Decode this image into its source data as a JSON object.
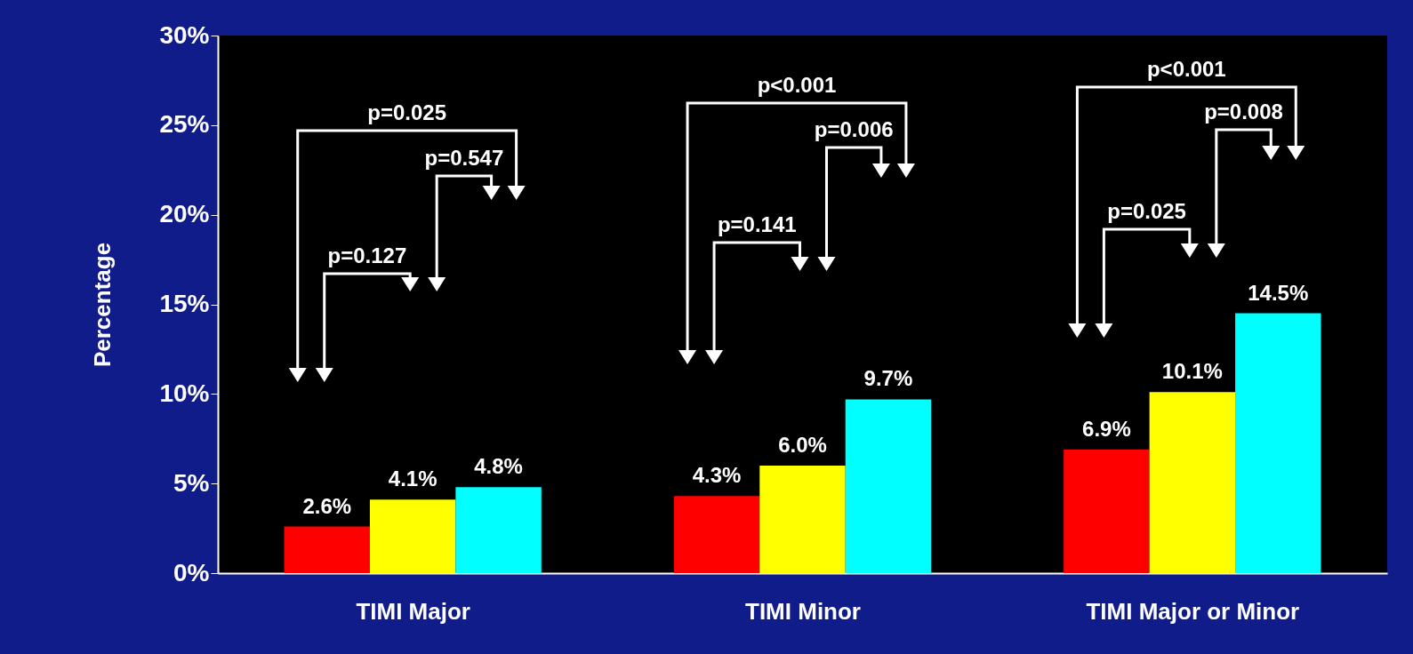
{
  "chart_data": {
    "type": "bar",
    "ylabel": "Percentage",
    "categories": [
      "TIMI Major",
      "TIMI Minor",
      "TIMI Major or Minor"
    ],
    "series": [
      {
        "color": "#ff0000",
        "values": [
          2.6,
          4.3,
          6.9
        ],
        "value_labels": [
          "2.6%",
          "4.3%",
          "6.9%"
        ]
      },
      {
        "color": "#ffff00",
        "values": [
          4.1,
          6.0,
          10.1
        ],
        "value_labels": [
          "4.1%",
          "6.0%",
          "10.1%"
        ]
      },
      {
        "color": "#00ffff",
        "values": [
          4.8,
          9.7,
          14.5
        ],
        "value_labels": [
          "4.8%",
          "9.7%",
          "14.5%"
        ]
      }
    ],
    "ylim": [
      0,
      30
    ],
    "yticks": [
      {
        "value": 0,
        "label": "0%"
      },
      {
        "value": 5,
        "label": "5%"
      },
      {
        "value": 10,
        "label": "10%"
      },
      {
        "value": 15,
        "label": "15%"
      },
      {
        "value": 20,
        "label": "20%"
      },
      {
        "value": 25,
        "label": "25%"
      },
      {
        "value": 30,
        "label": "30%"
      }
    ],
    "grid": false,
    "annotations": [
      "p=0.025",
      "p=0.547",
      "p=0.127",
      "p<0.001",
      "p=0.006",
      "p=0.141",
      "p<0.001",
      "p=0.008",
      "p=0.025"
    ]
  }
}
